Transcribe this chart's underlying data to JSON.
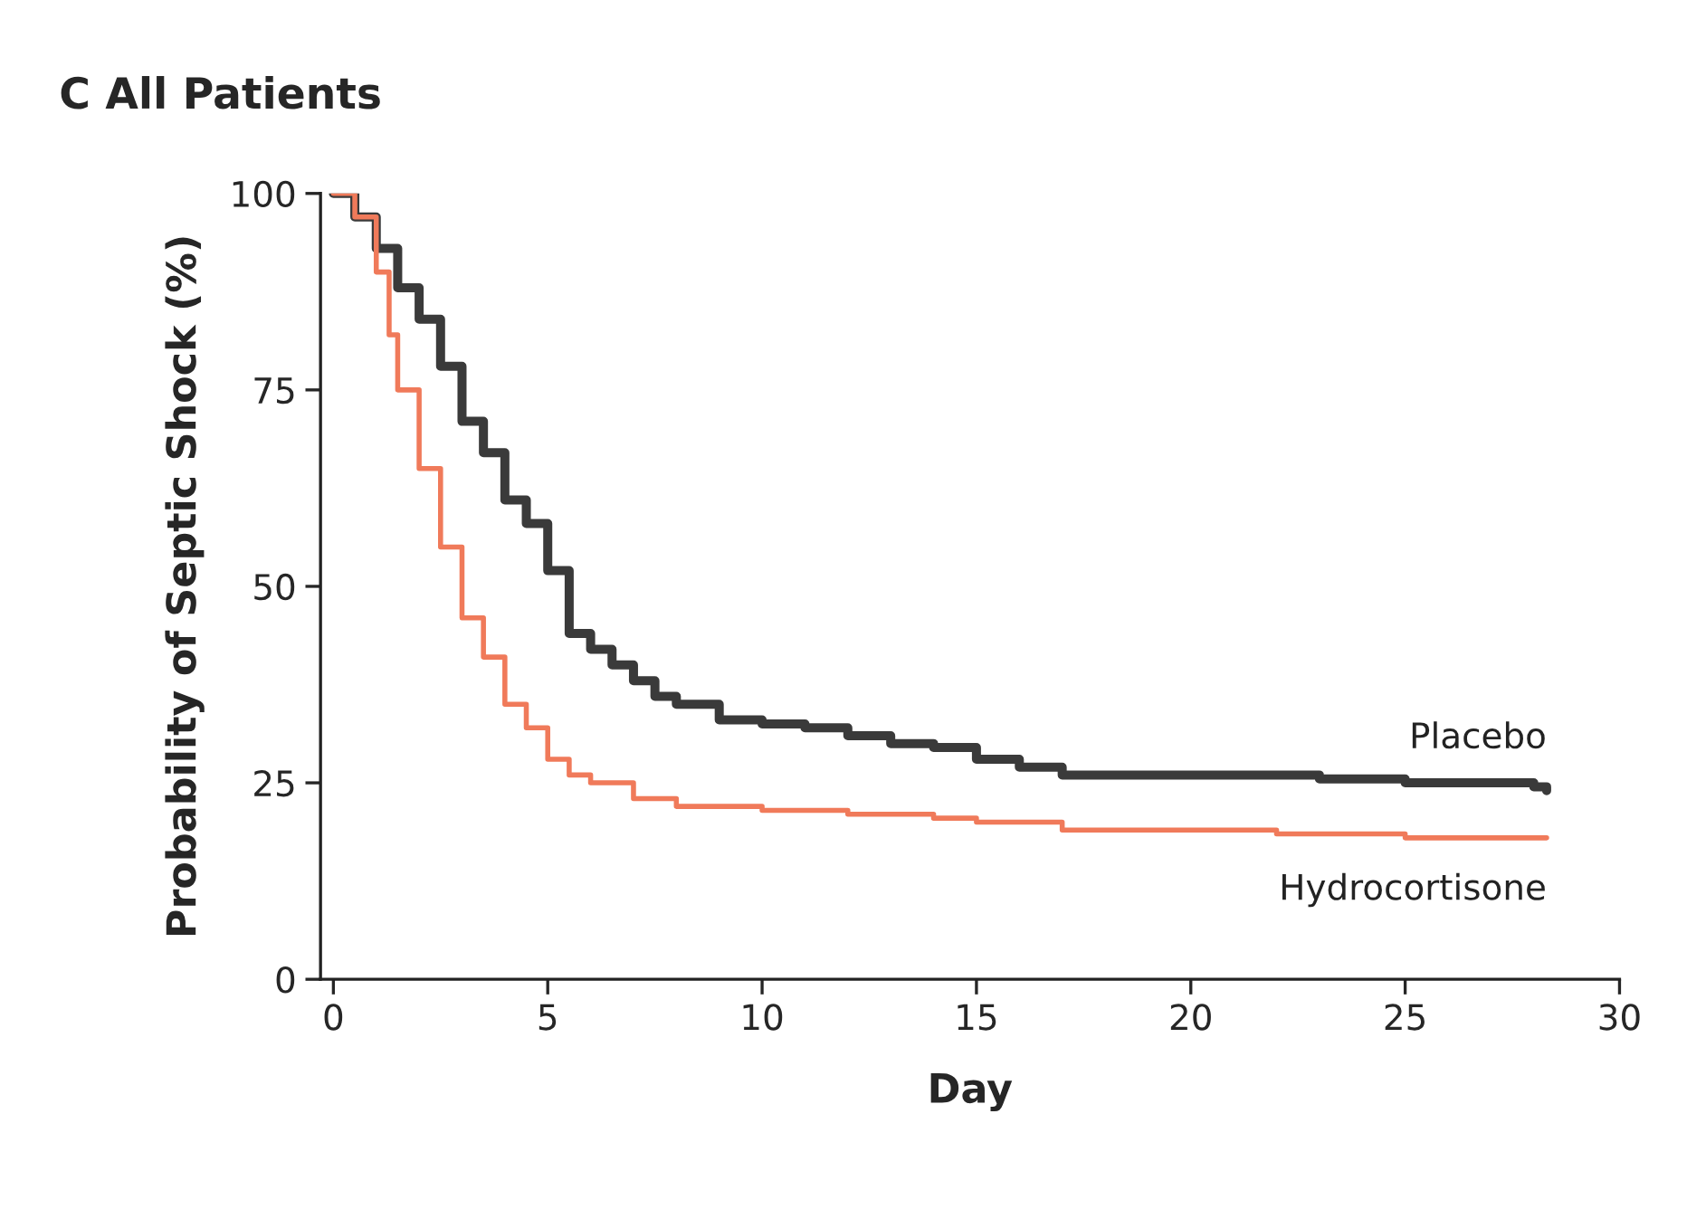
{
  "chart_data": {
    "type": "step",
    "title": "C All Patients",
    "xlabel": "Day",
    "ylabel": "Probability of Septic Shock (%)",
    "xlim": [
      -0.3,
      30
    ],
    "xticks": [
      0,
      5,
      10,
      15,
      20,
      25,
      30
    ],
    "ylim": [
      0,
      100
    ],
    "yticks": [
      0,
      25,
      50,
      75,
      100
    ],
    "grid": false,
    "legend": false,
    "series": [
      {
        "name": "Placebo",
        "color": "#3a3a3a",
        "x": [
          0,
          0.5,
          1,
          1.5,
          2,
          2.5,
          3,
          3.5,
          4,
          4.5,
          5,
          5.5,
          6,
          6.5,
          7,
          7.5,
          8,
          9,
          10,
          11,
          12,
          13,
          14,
          15,
          16,
          17,
          20,
          23,
          25,
          28,
          28.3
        ],
        "values": [
          100,
          97,
          93,
          88,
          84,
          78,
          71,
          67,
          61,
          58,
          52,
          44,
          42,
          40,
          38,
          36,
          35,
          33,
          32.5,
          32,
          31,
          30,
          29.5,
          28,
          27,
          26,
          26,
          25.5,
          25,
          24.5,
          24
        ]
      },
      {
        "name": "Hydrocortisone",
        "color": "#f07a5a",
        "x": [
          0,
          0.5,
          1,
          1.3,
          1.5,
          2,
          2.5,
          3,
          3.5,
          4,
          4.5,
          5,
          5.5,
          6,
          7,
          8,
          10,
          12,
          14,
          15,
          17,
          20,
          22,
          25,
          28.3
        ],
        "values": [
          100,
          97,
          90,
          82,
          75,
          65,
          55,
          46,
          41,
          35,
          32,
          28,
          26,
          25,
          23,
          22,
          21.5,
          21,
          20.5,
          20,
          19,
          19,
          18.5,
          18,
          18
        ]
      }
    ]
  }
}
